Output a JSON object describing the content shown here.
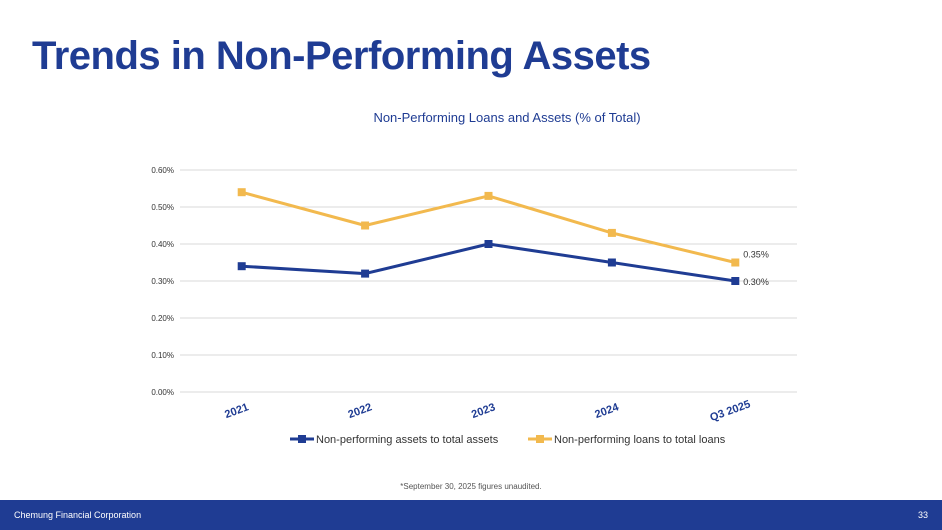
{
  "slide": {
    "title": "Trends in Non-Performing Assets",
    "footnote": "*September 30, 2025 figures unaudited.",
    "company": "Chemung Financial Corporation",
    "page_number": "33"
  },
  "colors": {
    "brand_blue": "#1f3c93",
    "series_assets": "#1f3c93",
    "series_loans": "#f2b94e",
    "grid": "#d9d9d9"
  },
  "chart_data": {
    "type": "line",
    "title": "Non-Performing Loans and Assets (% of Total)",
    "xlabel": "",
    "ylabel": "",
    "categories": [
      "2021",
      "2022",
      "2023",
      "2024",
      "Q3 2025"
    ],
    "y_ticks": [
      "0.00%",
      "0.10%",
      "0.20%",
      "0.30%",
      "0.40%",
      "0.50%",
      "0.60%"
    ],
    "ylim": [
      0,
      0.6
    ],
    "grid": true,
    "legend_position": "bottom",
    "series": [
      {
        "name": "Non-performing assets to total assets",
        "values": [
          0.34,
          0.32,
          0.4,
          0.35,
          0.3
        ],
        "color": "#1f3c93",
        "last_label": "0.30%"
      },
      {
        "name": "Non-performing loans to total loans",
        "values": [
          0.54,
          0.45,
          0.53,
          0.43,
          0.35
        ],
        "color": "#f2b94e",
        "last_label": "0.35%"
      }
    ]
  }
}
